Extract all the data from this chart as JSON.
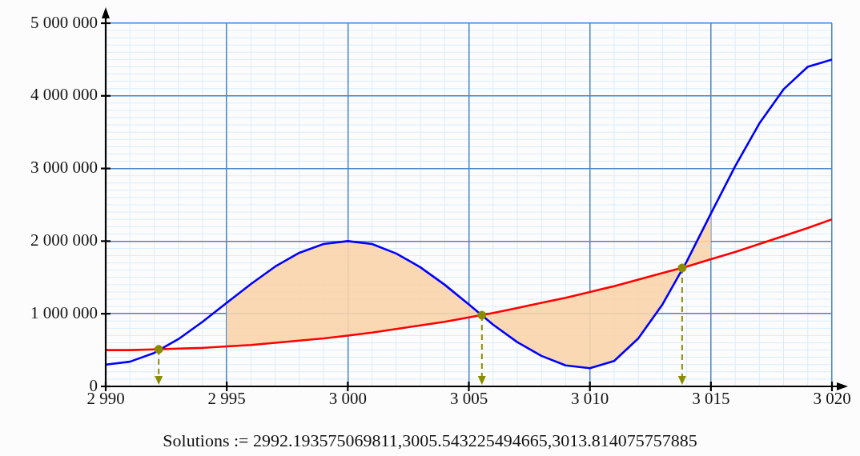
{
  "chart_data": {
    "type": "line",
    "x": [
      2990,
      2991,
      2992,
      2993,
      2994,
      2995,
      2996,
      2997,
      2998,
      2999,
      3000,
      3001,
      3002,
      3003,
      3004,
      3005,
      3006,
      3007,
      3008,
      3009,
      3010,
      3011,
      3012,
      3013,
      3014,
      3015,
      3016,
      3017,
      3018,
      3019,
      3020
    ],
    "series": [
      {
        "color": "#0000ff",
        "values": [
          300000,
          340000,
          460000,
          650000,
          890000,
          1150000,
          1410000,
          1650000,
          1840000,
          1960000,
          2000000,
          1960000,
          1830000,
          1640000,
          1400000,
          1130000,
          850000,
          610000,
          420000,
          290000,
          250000,
          350000,
          660000,
          1130000,
          1720000,
          2380000,
          3030000,
          3620000,
          4090000,
          4400000,
          4500000
        ]
      },
      {
        "color": "#ff0000",
        "values": [
          500000,
          500000,
          510000,
          520000,
          530000,
          550000,
          570000,
          600000,
          630000,
          660000,
          700000,
          740000,
          790000,
          840000,
          890000,
          950000,
          1010000,
          1080000,
          1150000,
          1220000,
          1300000,
          1380000,
          1470000,
          1560000,
          1650000,
          1750000,
          1850000,
          1960000,
          2070000,
          2180000,
          2300000
        ],
        "lower": [
          null,
          null,
          null,
          null,
          null,
          550000,
          570000,
          600000,
          630000,
          660000,
          700000,
          740000,
          790000,
          840000,
          890000,
          950000,
          1010000,
          1080000,
          1150000,
          1220000,
          1300000,
          1380000,
          1470000,
          1560000,
          1650000,
          1750000,
          null,
          null,
          null,
          null,
          null
        ],
        "upper": [
          null,
          null,
          null,
          null,
          null,
          1150000,
          1410000,
          1650000,
          1840000,
          1960000,
          2000000,
          1960000,
          1830000,
          1640000,
          1400000,
          1130000,
          850000,
          610000,
          420000,
          290000,
          250000,
          350000,
          660000,
          1130000,
          1720000,
          2380000,
          null,
          null,
          null,
          null,
          null
        ]
      },
      {
        "type": "scatter",
        "color": "#8c8c00",
        "marker": "circle",
        "line_style": "dashed",
        "x": [
          2992.19,
          3005.54,
          3013.81
        ],
        "values": [
          510000,
          980000,
          1630000
        ]
      }
    ],
    "xlim": [
      2990,
      3020
    ],
    "xticks": [
      {
        "value": 2990,
        "label": "2 990"
      },
      {
        "value": 2995,
        "label": "2 995"
      },
      {
        "value": 3000,
        "label": "3 000"
      },
      {
        "value": 3005,
        "label": "3 005"
      },
      {
        "value": 3010,
        "label": "3 010"
      },
      {
        "value": 3015,
        "label": "3 015"
      },
      {
        "value": 3020,
        "label": "3 020"
      }
    ],
    "ylim": [
      0,
      5000000
    ],
    "yticks": [
      0,
      {
        "value": 1000000,
        "label": "1 000 000"
      },
      {
        "value": 2000000,
        "label": "2 000 000"
      },
      {
        "value": 3000000,
        "label": "3 000 000"
      },
      {
        "value": 4000000,
        "label": "4 000 000"
      },
      {
        "value": 5000000,
        "label": "5 000 000"
      }
    ],
    "grid": true,
    "legend": false,
    "annotations": [
      "Solutions := 2992.193575069811,3005.543225494665,3013.814075757885"
    ]
  }
}
